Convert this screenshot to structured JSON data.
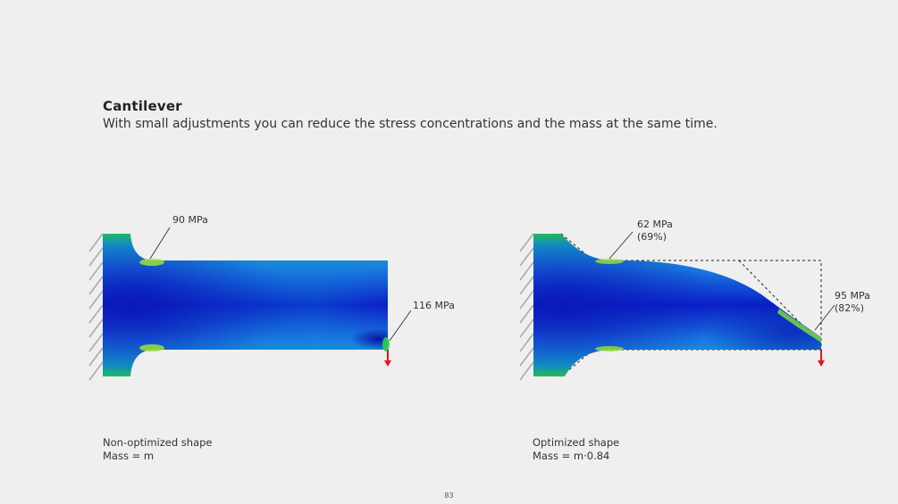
{
  "header": {
    "title": "Cantilever",
    "subtitle": "With small adjustments you can reduce the stress concentrations and the mass at the same time."
  },
  "left_figure": {
    "callout_root": "90 MPa",
    "callout_tip": "116 MPa",
    "caption_line1": "Non-optimized shape",
    "caption_line2": "Mass = m"
  },
  "right_figure": {
    "callout_root": "62 MPa\n(69%)",
    "callout_tip": "95 MPa\n(82%)",
    "caption_line1": "Optimized shape",
    "caption_line2": "Mass = m·0.84"
  },
  "page_number": "83",
  "colors": {
    "background": "#efefef",
    "stress_low": "#0a1fc8",
    "stress_high": "#1ed23a",
    "load_arrow": "#e8141e"
  }
}
